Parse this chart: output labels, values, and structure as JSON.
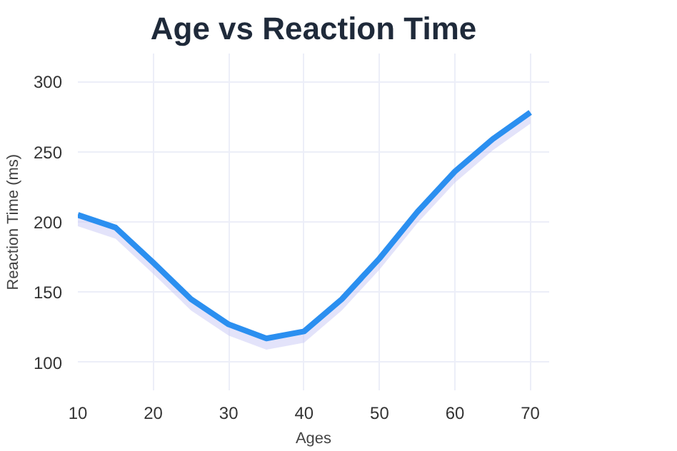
{
  "chart_data": {
    "type": "line",
    "title": "Age vs Reaction Time",
    "xlabel": "Ages",
    "ylabel": "Reaction Time (ms)",
    "x": [
      10,
      15,
      20,
      25,
      30,
      35,
      40,
      45,
      50,
      55,
      60,
      65,
      70
    ],
    "series": [
      {
        "color": "#2b8ff0",
        "values": [
          205,
          196,
          171,
          145,
          127,
          117,
          122,
          145,
          174,
          207,
          236,
          259,
          278
        ],
        "lower": [
          197,
          188,
          163,
          137,
          119,
          109,
          114,
          137,
          166,
          199,
          228,
          251,
          270
        ],
        "upper": [
          206,
          197,
          172,
          146,
          128,
          118,
          123,
          146,
          175,
          208,
          237,
          260,
          279
        ]
      }
    ],
    "xlim": [
      10,
      72.5
    ],
    "ylim": [
      80,
      320
    ],
    "xticks": [
      10,
      20,
      30,
      40,
      50,
      60,
      70
    ],
    "yticks": [
      100,
      150,
      200,
      250,
      300
    ],
    "grid": true,
    "marker": "none",
    "line_style": "solid"
  }
}
